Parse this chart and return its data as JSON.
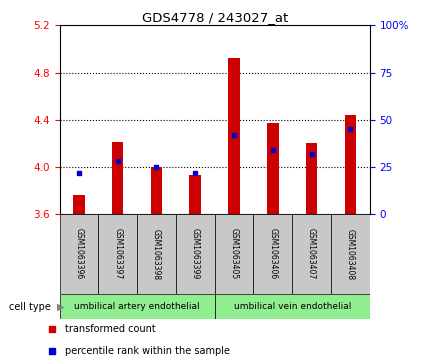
{
  "title": "GDS4778 / 243027_at",
  "samples": [
    "GSM1063396",
    "GSM1063397",
    "GSM1063398",
    "GSM1063399",
    "GSM1063405",
    "GSM1063406",
    "GSM1063407",
    "GSM1063408"
  ],
  "red_values": [
    3.76,
    4.21,
    4.0,
    3.93,
    4.92,
    4.37,
    4.2,
    4.44
  ],
  "blue_values": [
    22,
    28,
    25,
    22,
    42,
    34,
    32,
    45
  ],
  "ylim_left": [
    3.6,
    5.2
  ],
  "ylim_right": [
    0,
    100
  ],
  "yticks_left": [
    3.6,
    4.0,
    4.4,
    4.8,
    5.2
  ],
  "yticks_right": [
    0,
    25,
    50,
    75,
    100
  ],
  "cell_type_labels": [
    "umbilical artery endothelial",
    "umbilical vein endothelial"
  ],
  "bar_color": "#cc0000",
  "blue_color": "#0000cc",
  "bg_color": "#c8c8c8",
  "plot_bg": "#ffffff",
  "legend_red": "transformed count",
  "legend_blue": "percentile rank within the sample",
  "cell_type_text": "cell type",
  "green_color": "#90ee90"
}
